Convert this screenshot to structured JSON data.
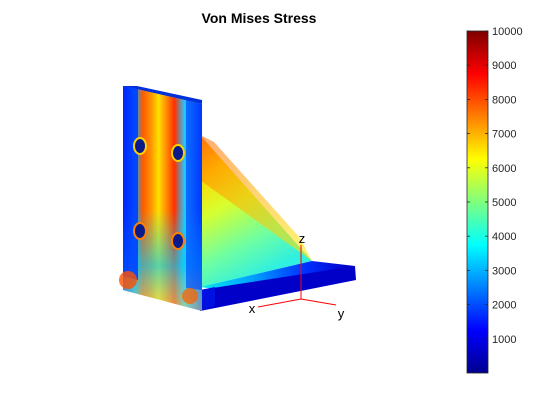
{
  "chart_data": {
    "type": "heatmap",
    "title": "Von Mises Stress",
    "colormap": "jet",
    "clim": [
      0,
      10000
    ],
    "colorbar": {
      "ticks": [
        1000,
        2000,
        3000,
        4000,
        5000,
        6000,
        7000,
        8000,
        9000,
        10000
      ],
      "tick_labels": [
        "1000",
        "2000",
        "3000",
        "4000",
        "5000",
        "6000",
        "7000",
        "8000",
        "9000",
        "10000"
      ],
      "location": "right"
    },
    "axes_triad": {
      "labels": [
        "x",
        "y",
        "z"
      ],
      "color": "#ff0000"
    }
  }
}
